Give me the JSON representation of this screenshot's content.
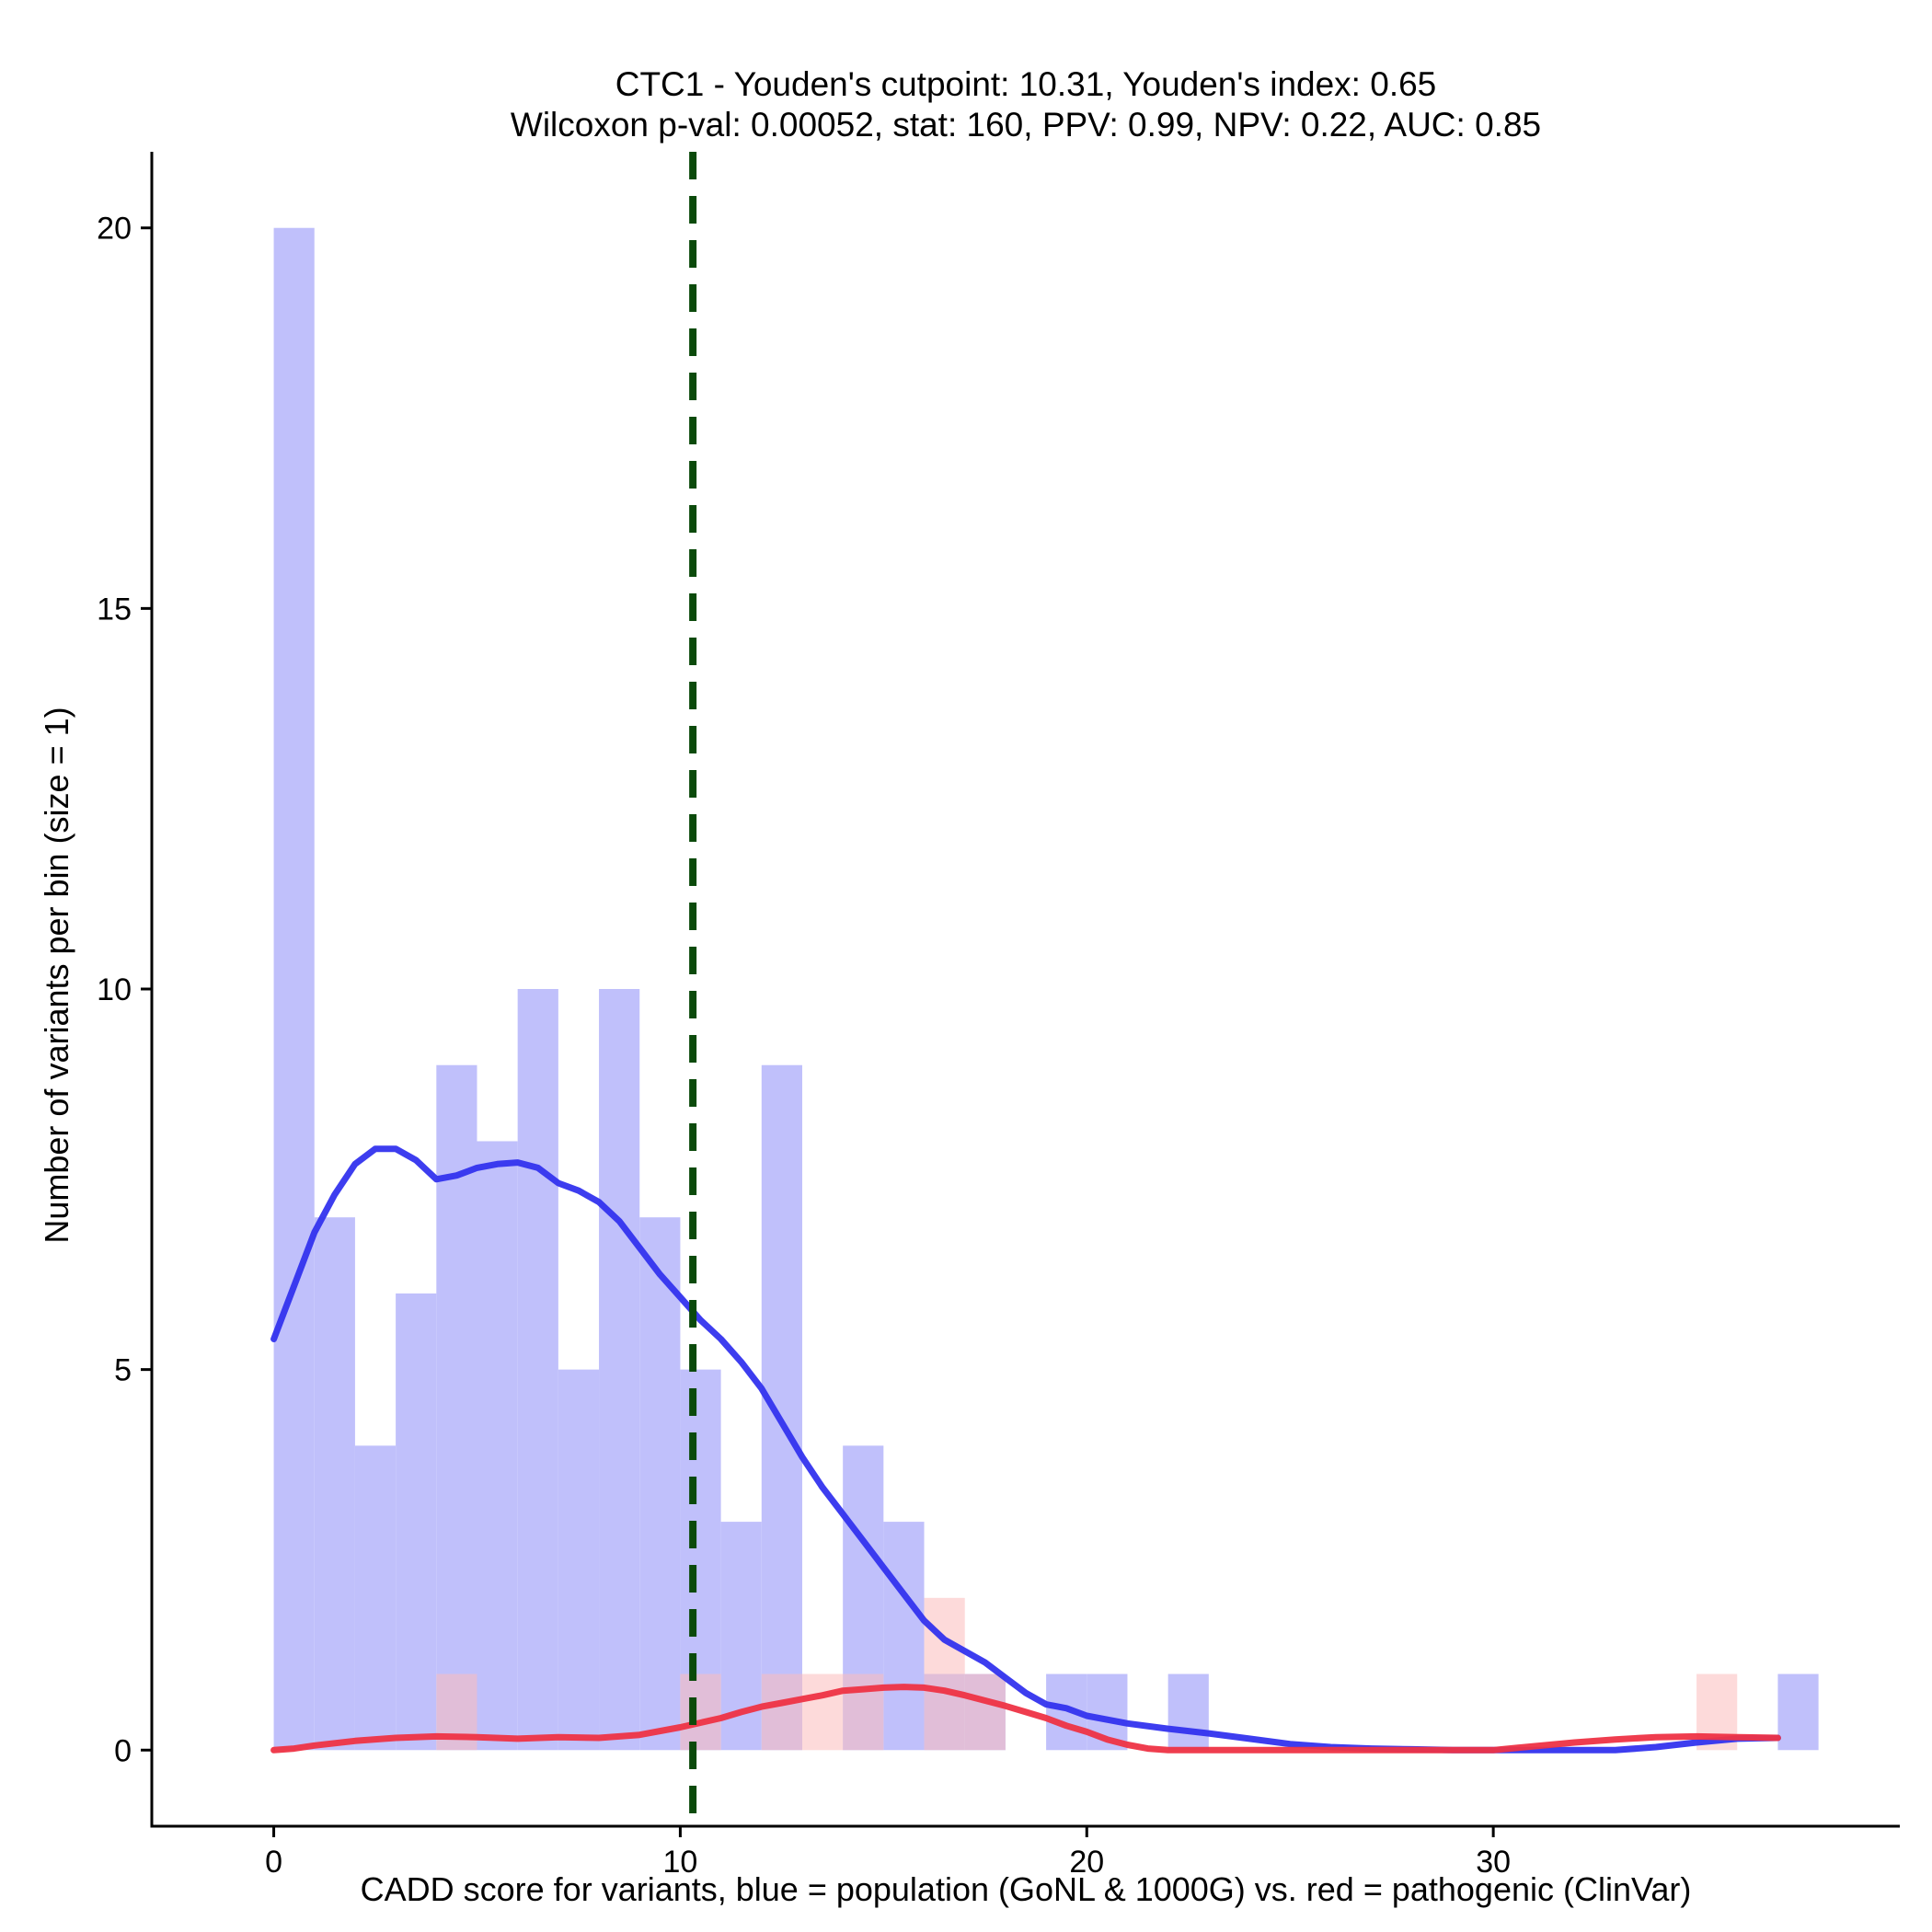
{
  "chart_data": {
    "type": "histogram",
    "title": "CTC1 - Youden's cutpoint: 10.31, Youden's index: 0.65",
    "subtitle": "Wilcoxon p-val: 0.00052, stat: 160, PPV: 0.99, NPV: 0.22, AUC: 0.85",
    "xlabel": "CADD score for variants, blue = population (GoNL & 1000G) vs. red = pathogenic (ClinVar)",
    "ylabel": "Number of variants per bin (size = 1)",
    "xlim": [
      -3,
      40
    ],
    "ylim": [
      -1,
      21
    ],
    "x_ticks": [
      0,
      10,
      20,
      30
    ],
    "y_ticks": [
      0,
      5,
      10,
      15,
      20
    ],
    "bin_size": 1,
    "cutpoint": 10.31,
    "grid": false,
    "colors": {
      "population_bar": "#c0c0fb",
      "pathogenic_bar": "#fbbcbc",
      "overlap_bar": "#cc99c8",
      "population_line": "#3333ee",
      "pathogenic_line": "#ee3344",
      "cutpoint_line": "#0b4a0b"
    },
    "series": [
      {
        "kind": "bars",
        "color_key": "population_bar",
        "bins": [
          {
            "x0": 0,
            "count": 20
          },
          {
            "x0": 1,
            "count": 7
          },
          {
            "x0": 2,
            "count": 4
          },
          {
            "x0": 3,
            "count": 6
          },
          {
            "x0": 4,
            "count": 9
          },
          {
            "x0": 5,
            "count": 8
          },
          {
            "x0": 6,
            "count": 10
          },
          {
            "x0": 7,
            "count": 5
          },
          {
            "x0": 8,
            "count": 10
          },
          {
            "x0": 9,
            "count": 7
          },
          {
            "x0": 10,
            "count": 5
          },
          {
            "x0": 11,
            "count": 3
          },
          {
            "x0": 12,
            "count": 9
          },
          {
            "x0": 14,
            "count": 4
          },
          {
            "x0": 15,
            "count": 3
          },
          {
            "x0": 16,
            "count": 1
          },
          {
            "x0": 17,
            "count": 1
          },
          {
            "x0": 19,
            "count": 1
          },
          {
            "x0": 20,
            "count": 1
          },
          {
            "x0": 22,
            "count": 1
          },
          {
            "x0": 37,
            "count": 1
          }
        ]
      },
      {
        "kind": "bars",
        "color_key": "pathogenic_bar",
        "bins": [
          {
            "x0": 4,
            "count": 1
          },
          {
            "x0": 10,
            "count": 1
          },
          {
            "x0": 12,
            "count": 1
          },
          {
            "x0": 13,
            "count": 1
          },
          {
            "x0": 14,
            "count": 1
          },
          {
            "x0": 16,
            "count": 2
          },
          {
            "x0": 17,
            "count": 1
          },
          {
            "x0": 35,
            "count": 1
          }
        ]
      },
      {
        "kind": "density",
        "color_key": "population_line",
        "x": [
          0,
          0.5,
          1,
          1.5,
          2,
          2.5,
          3,
          3.5,
          4,
          4.5,
          5,
          5.5,
          6,
          6.5,
          7,
          7.5,
          8,
          8.5,
          9,
          9.5,
          10,
          10.5,
          11,
          11.5,
          12,
          12.5,
          13,
          13.5,
          14,
          14.5,
          15,
          15.5,
          16,
          16.5,
          17,
          17.5,
          18,
          18.5,
          19,
          19.5,
          20,
          21,
          22,
          23,
          24,
          25,
          26,
          27,
          28,
          29,
          30,
          31,
          32,
          33,
          34,
          35,
          36,
          37
        ],
        "y": [
          5.4,
          6.1,
          6.8,
          7.3,
          7.7,
          7.9,
          7.9,
          7.75,
          7.5,
          7.55,
          7.65,
          7.7,
          7.72,
          7.65,
          7.45,
          7.35,
          7.2,
          6.95,
          6.6,
          6.25,
          5.95,
          5.65,
          5.4,
          5.1,
          4.75,
          4.3,
          3.85,
          3.45,
          3.1,
          2.75,
          2.4,
          2.05,
          1.7,
          1.45,
          1.3,
          1.15,
          0.95,
          0.75,
          0.6,
          0.55,
          0.45,
          0.35,
          0.28,
          0.22,
          0.15,
          0.08,
          0.04,
          0.02,
          0.01,
          0.0,
          0.0,
          0.0,
          0.0,
          0.0,
          0.04,
          0.1,
          0.15,
          0.16
        ]
      },
      {
        "kind": "density",
        "color_key": "pathogenic_line",
        "x": [
          0,
          0.5,
          1,
          2,
          3,
          4,
          5,
          6,
          7,
          8,
          9,
          10,
          10.5,
          11,
          11.5,
          12,
          12.5,
          13,
          13.5,
          14,
          14.5,
          15,
          15.5,
          16,
          16.5,
          17,
          17.5,
          18,
          18.5,
          19,
          19.5,
          20,
          20.5,
          21,
          21.5,
          22,
          23,
          24,
          26,
          28,
          30,
          31,
          32,
          33,
          34,
          35,
          36,
          37
        ],
        "y": [
          0.0,
          0.02,
          0.06,
          0.12,
          0.16,
          0.18,
          0.17,
          0.15,
          0.17,
          0.16,
          0.2,
          0.3,
          0.36,
          0.42,
          0.5,
          0.57,
          0.62,
          0.67,
          0.72,
          0.78,
          0.8,
          0.82,
          0.83,
          0.82,
          0.78,
          0.72,
          0.65,
          0.58,
          0.5,
          0.42,
          0.32,
          0.24,
          0.14,
          0.07,
          0.02,
          0.0,
          0.0,
          0.0,
          0.0,
          0.0,
          0.0,
          0.05,
          0.1,
          0.14,
          0.17,
          0.18,
          0.17,
          0.16
        ]
      }
    ]
  }
}
